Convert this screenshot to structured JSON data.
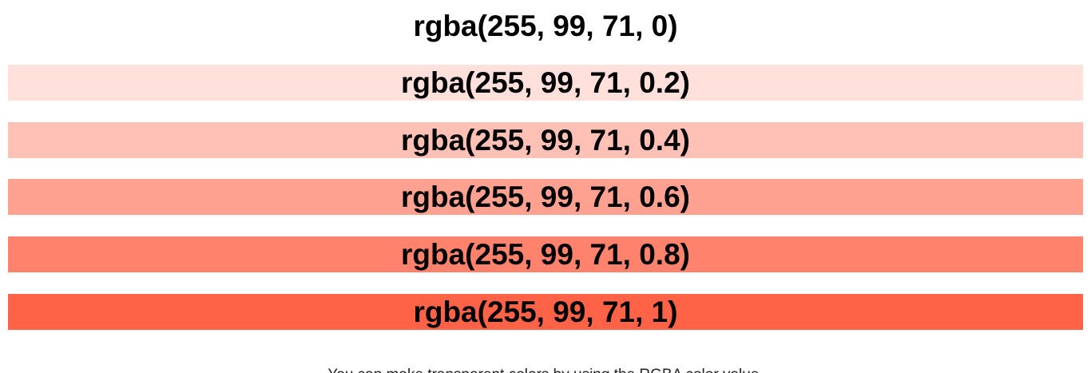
{
  "base_color": "#ff6347",
  "swatches": [
    {
      "label": "rgba(255, 99, 71, 0)",
      "background": "rgba(255, 99, 71, 0)",
      "alpha": 0
    },
    {
      "label": "rgba(255, 99, 71, 0.2)",
      "background": "rgba(255, 99, 71, 0.2)",
      "alpha": 0.2
    },
    {
      "label": "rgba(255, 99, 71, 0.4)",
      "background": "rgba(255, 99, 71, 0.4)",
      "alpha": 0.4
    },
    {
      "label": "rgba(255, 99, 71, 0.6)",
      "background": "rgba(255, 99, 71, 0.6)",
      "alpha": 0.6
    },
    {
      "label": "rgba(255, 99, 71, 0.8)",
      "background": "rgba(255, 99, 71, 0.8)",
      "alpha": 0.8
    },
    {
      "label": "rgba(255, 99, 71, 1)",
      "background": "rgba(255, 99, 71, 1)",
      "alpha": 1
    }
  ],
  "caption": "You can make transparent colors by using the RGBA color value."
}
